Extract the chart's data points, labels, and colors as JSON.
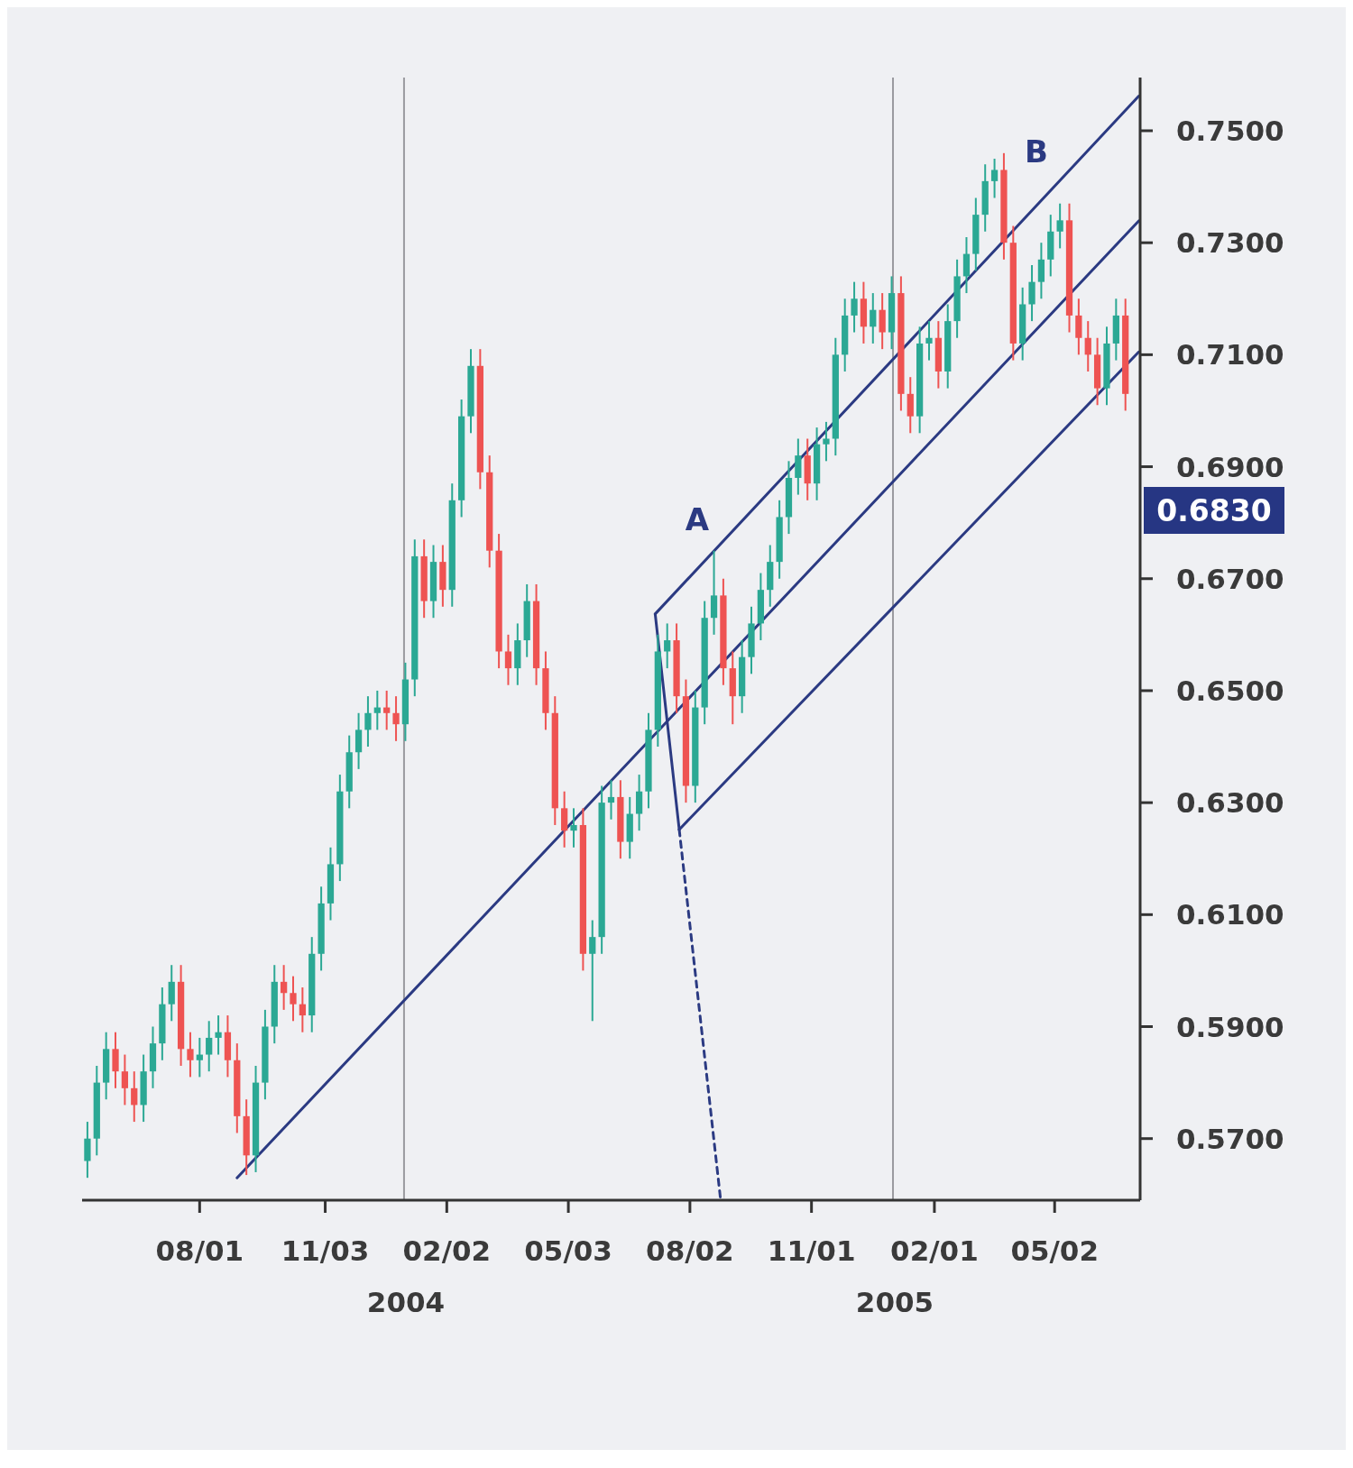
{
  "chart_data": {
    "type": "candlestick",
    "x": [
      "2003-05-09",
      "2003-05-16",
      "2003-05-23",
      "2003-05-30",
      "2003-06-06",
      "2003-06-13",
      "2003-06-20",
      "2003-06-27",
      "2003-07-04",
      "2003-07-11",
      "2003-07-18",
      "2003-07-25",
      "2003-08-01",
      "2003-08-08",
      "2003-08-15",
      "2003-08-22",
      "2003-08-29",
      "2003-09-05",
      "2003-09-12",
      "2003-09-19",
      "2003-09-26",
      "2003-10-03",
      "2003-10-10",
      "2003-10-17",
      "2003-10-24",
      "2003-10-31",
      "2003-11-07",
      "2003-11-14",
      "2003-11-21",
      "2003-11-28",
      "2003-12-05",
      "2003-12-12",
      "2003-12-19",
      "2003-12-26",
      "2004-01-02",
      "2004-01-09",
      "2004-01-16",
      "2004-01-23",
      "2004-01-30",
      "2004-02-06",
      "2004-02-13",
      "2004-02-20",
      "2004-02-27",
      "2004-03-05",
      "2004-03-12",
      "2004-03-19",
      "2004-03-26",
      "2004-04-02",
      "2004-04-09",
      "2004-04-16",
      "2004-04-23",
      "2004-04-30",
      "2004-05-07",
      "2004-05-14",
      "2004-05-21",
      "2004-05-28",
      "2004-06-04",
      "2004-06-11",
      "2004-06-18",
      "2004-06-25",
      "2004-07-02",
      "2004-07-09",
      "2004-07-16",
      "2004-07-23",
      "2004-07-30",
      "2004-08-06",
      "2004-08-13",
      "2004-08-20",
      "2004-08-27",
      "2004-09-03",
      "2004-09-10",
      "2004-09-17",
      "2004-09-24",
      "2004-10-01",
      "2004-10-08",
      "2004-10-15",
      "2004-10-22",
      "2004-10-29",
      "2004-11-05",
      "2004-11-12",
      "2004-11-19",
      "2004-11-26",
      "2004-12-03",
      "2004-12-10",
      "2004-12-17",
      "2004-12-24",
      "2004-12-31",
      "2005-01-07",
      "2005-01-14",
      "2005-01-21",
      "2005-01-28",
      "2005-02-04",
      "2005-02-11",
      "2005-02-18",
      "2005-02-25",
      "2005-03-04",
      "2005-03-11",
      "2005-03-18",
      "2005-03-25",
      "2005-04-01",
      "2005-04-08",
      "2005-04-15",
      "2005-04-22",
      "2005-04-29",
      "2005-05-06",
      "2005-05-13",
      "2005-05-20",
      "2005-05-27",
      "2005-06-03",
      "2005-06-10",
      "2005-06-17",
      "2005-06-24"
    ],
    "ohlc": [
      [
        0.566,
        0.573,
        0.563,
        0.57
      ],
      [
        0.57,
        0.583,
        0.567,
        0.58
      ],
      [
        0.58,
        0.589,
        0.577,
        0.586
      ],
      [
        0.586,
        0.589,
        0.579,
        0.582
      ],
      [
        0.582,
        0.585,
        0.576,
        0.579
      ],
      [
        0.579,
        0.582,
        0.573,
        0.576
      ],
      [
        0.576,
        0.585,
        0.573,
        0.582
      ],
      [
        0.582,
        0.59,
        0.579,
        0.587
      ],
      [
        0.587,
        0.597,
        0.584,
        0.594
      ],
      [
        0.594,
        0.601,
        0.591,
        0.598
      ],
      [
        0.598,
        0.601,
        0.583,
        0.586
      ],
      [
        0.586,
        0.589,
        0.581,
        0.584
      ],
      [
        0.584,
        0.588,
        0.581,
        0.585
      ],
      [
        0.585,
        0.591,
        0.582,
        0.588
      ],
      [
        0.588,
        0.592,
        0.585,
        0.589
      ],
      [
        0.589,
        0.592,
        0.581,
        0.584
      ],
      [
        0.584,
        0.587,
        0.571,
        0.574
      ],
      [
        0.574,
        0.577,
        0.5635,
        0.567
      ],
      [
        0.567,
        0.583,
        0.564,
        0.58
      ],
      [
        0.58,
        0.593,
        0.577,
        0.59
      ],
      [
        0.59,
        0.601,
        0.587,
        0.598
      ],
      [
        0.598,
        0.601,
        0.593,
        0.596
      ],
      [
        0.596,
        0.599,
        0.591,
        0.594
      ],
      [
        0.594,
        0.597,
        0.589,
        0.592
      ],
      [
        0.592,
        0.606,
        0.589,
        0.603
      ],
      [
        0.603,
        0.615,
        0.6,
        0.612
      ],
      [
        0.612,
        0.622,
        0.609,
        0.619
      ],
      [
        0.619,
        0.635,
        0.616,
        0.632
      ],
      [
        0.632,
        0.642,
        0.629,
        0.639
      ],
      [
        0.639,
        0.646,
        0.636,
        0.643
      ],
      [
        0.643,
        0.649,
        0.64,
        0.646
      ],
      [
        0.646,
        0.65,
        0.643,
        0.647
      ],
      [
        0.647,
        0.65,
        0.643,
        0.646
      ],
      [
        0.646,
        0.649,
        0.641,
        0.644
      ],
      [
        0.644,
        0.655,
        0.641,
        0.652
      ],
      [
        0.652,
        0.677,
        0.649,
        0.674
      ],
      [
        0.674,
        0.677,
        0.663,
        0.666
      ],
      [
        0.666,
        0.676,
        0.663,
        0.673
      ],
      [
        0.673,
        0.676,
        0.665,
        0.668
      ],
      [
        0.668,
        0.687,
        0.665,
        0.684
      ],
      [
        0.684,
        0.702,
        0.681,
        0.699
      ],
      [
        0.699,
        0.711,
        0.696,
        0.708
      ],
      [
        0.708,
        0.711,
        0.686,
        0.689
      ],
      [
        0.689,
        0.692,
        0.672,
        0.675
      ],
      [
        0.675,
        0.678,
        0.654,
        0.657
      ],
      [
        0.657,
        0.66,
        0.651,
        0.654
      ],
      [
        0.654,
        0.662,
        0.651,
        0.659
      ],
      [
        0.659,
        0.669,
        0.656,
        0.666
      ],
      [
        0.666,
        0.669,
        0.651,
        0.654
      ],
      [
        0.654,
        0.657,
        0.643,
        0.646
      ],
      [
        0.646,
        0.649,
        0.626,
        0.629
      ],
      [
        0.629,
        0.632,
        0.622,
        0.625
      ],
      [
        0.625,
        0.629,
        0.622,
        0.626
      ],
      [
        0.626,
        0.629,
        0.6,
        0.603
      ],
      [
        0.603,
        0.609,
        0.591,
        0.606
      ],
      [
        0.606,
        0.633,
        0.603,
        0.63
      ],
      [
        0.63,
        0.634,
        0.627,
        0.631
      ],
      [
        0.631,
        0.634,
        0.62,
        0.623
      ],
      [
        0.623,
        0.631,
        0.62,
        0.628
      ],
      [
        0.628,
        0.635,
        0.625,
        0.632
      ],
      [
        0.632,
        0.646,
        0.629,
        0.643
      ],
      [
        0.643,
        0.66,
        0.64,
        0.657
      ],
      [
        0.657,
        0.662,
        0.654,
        0.659
      ],
      [
        0.659,
        0.662,
        0.646,
        0.649
      ],
      [
        0.649,
        0.652,
        0.63,
        0.633
      ],
      [
        0.633,
        0.65,
        0.63,
        0.647
      ],
      [
        0.647,
        0.666,
        0.644,
        0.663
      ],
      [
        0.663,
        0.675,
        0.66,
        0.667
      ],
      [
        0.667,
        0.67,
        0.651,
        0.654
      ],
      [
        0.654,
        0.657,
        0.644,
        0.649
      ],
      [
        0.649,
        0.659,
        0.646,
        0.656
      ],
      [
        0.656,
        0.665,
        0.653,
        0.662
      ],
      [
        0.662,
        0.671,
        0.659,
        0.668
      ],
      [
        0.668,
        0.676,
        0.665,
        0.673
      ],
      [
        0.673,
        0.684,
        0.67,
        0.681
      ],
      [
        0.681,
        0.691,
        0.678,
        0.688
      ],
      [
        0.688,
        0.695,
        0.685,
        0.692
      ],
      [
        0.692,
        0.695,
        0.684,
        0.687
      ],
      [
        0.687,
        0.697,
        0.684,
        0.694
      ],
      [
        0.694,
        0.698,
        0.691,
        0.695
      ],
      [
        0.695,
        0.713,
        0.692,
        0.71
      ],
      [
        0.71,
        0.72,
        0.707,
        0.717
      ],
      [
        0.717,
        0.723,
        0.714,
        0.72
      ],
      [
        0.72,
        0.723,
        0.712,
        0.715
      ],
      [
        0.715,
        0.721,
        0.712,
        0.718
      ],
      [
        0.718,
        0.721,
        0.711,
        0.714
      ],
      [
        0.714,
        0.724,
        0.711,
        0.721
      ],
      [
        0.721,
        0.724,
        0.7,
        0.703
      ],
      [
        0.703,
        0.706,
        0.696,
        0.699
      ],
      [
        0.699,
        0.715,
        0.696,
        0.712
      ],
      [
        0.712,
        0.716,
        0.709,
        0.713
      ],
      [
        0.713,
        0.716,
        0.704,
        0.707
      ],
      [
        0.707,
        0.719,
        0.704,
        0.716
      ],
      [
        0.716,
        0.727,
        0.713,
        0.724
      ],
      [
        0.724,
        0.731,
        0.721,
        0.728
      ],
      [
        0.728,
        0.738,
        0.725,
        0.735
      ],
      [
        0.735,
        0.744,
        0.732,
        0.741
      ],
      [
        0.741,
        0.745,
        0.738,
        0.743
      ],
      [
        0.743,
        0.746,
        0.727,
        0.73
      ],
      [
        0.73,
        0.733,
        0.709,
        0.712
      ],
      [
        0.712,
        0.722,
        0.709,
        0.719
      ],
      [
        0.719,
        0.726,
        0.716,
        0.723
      ],
      [
        0.723,
        0.73,
        0.72,
        0.727
      ],
      [
        0.727,
        0.735,
        0.724,
        0.732
      ],
      [
        0.732,
        0.737,
        0.729,
        0.734
      ],
      [
        0.734,
        0.737,
        0.714,
        0.717
      ],
      [
        0.717,
        0.72,
        0.71,
        0.713
      ],
      [
        0.713,
        0.716,
        0.707,
        0.71
      ],
      [
        0.71,
        0.713,
        0.701,
        0.704
      ],
      [
        0.704,
        0.715,
        0.701,
        0.712
      ],
      [
        0.712,
        0.72,
        0.709,
        0.717
      ],
      [
        0.717,
        0.72,
        0.7,
        0.703
      ]
    ],
    "colors": [
      "#2ba894",
      "#2ba894",
      "#2ba894",
      "#ee5352",
      "#ee5352",
      "#ee5352",
      "#2ba894",
      "#2ba894",
      "#2ba894",
      "#2ba894",
      "#ee5352",
      "#ee5352",
      "#2ba894",
      "#2ba894",
      "#2ba894",
      "#ee5352",
      "#ee5352",
      "#ee5352",
      "#2ba894",
      "#2ba894",
      "#2ba894",
      "#ee5352",
      "#ee5352",
      "#ee5352",
      "#2ba894",
      "#2ba894",
      "#2ba894",
      "#2ba894",
      "#2ba894",
      "#2ba894",
      "#2ba894",
      "#2ba894",
      "#ee5352",
      "#ee5352",
      "#2ba894",
      "#2ba894",
      "#ee5352",
      "#2ba894",
      "#ee5352",
      "#2ba894",
      "#2ba894",
      "#2ba894",
      "#ee5352",
      "#ee5352",
      "#ee5352",
      "#ee5352",
      "#2ba894",
      "#2ba894",
      "#ee5352",
      "#ee5352",
      "#ee5352",
      "#ee5352",
      "#2ba894",
      "#ee5352",
      "#2ba894",
      "#2ba894",
      "#2ba894",
      "#ee5352",
      "#2ba894",
      "#2ba894",
      "#2ba894",
      "#2ba894",
      "#2ba894",
      "#ee5352",
      "#ee5352",
      "#2ba894",
      "#2ba894",
      "#2ba894",
      "#ee5352",
      "#ee5352",
      "#2ba894",
      "#2ba894",
      "#2ba894",
      "#2ba894",
      "#2ba894",
      "#2ba894",
      "#2ba894",
      "#ee5352",
      "#2ba894",
      "#2ba894",
      "#2ba894",
      "#2ba894",
      "#2ba894",
      "#ee5352",
      "#2ba894",
      "#ee5352",
      "#2ba894",
      "#ee5352",
      "#ee5352",
      "#2ba894",
      "#2ba894",
      "#ee5352",
      "#2ba894",
      "#2ba894",
      "#2ba894",
      "#2ba894",
      "#2ba894",
      "#2ba894",
      "#ee5352",
      "#ee5352",
      "#2ba894",
      "#2ba894",
      "#2ba894",
      "#2ba894",
      "#2ba894",
      "#ee5352",
      "#ee5352",
      "#ee5352",
      "#ee5352",
      "#2ba894",
      "#2ba894",
      "#ee5352"
    ],
    "series": [
      {
        "type": "line",
        "x": [
          "2003-08-29",
          "2005-07-04"
        ],
        "values": [
          0.563,
          0.7339
        ],
        "color": "#2b3a82",
        "line_style": "solid"
      },
      {
        "type": "line",
        "x": [
          "2004-07-07",
          "2005-07-04"
        ],
        "values": [
          0.6637,
          0.7562
        ],
        "color": "#2b3a82",
        "line_style": "solid"
      },
      {
        "type": "line",
        "x": [
          "2004-07-25",
          "2005-07-04"
        ],
        "values": [
          0.6252,
          0.7105
        ],
        "color": "#2b3a82",
        "line_style": "solid"
      },
      {
        "type": "line",
        "x": [
          "2004-07-07",
          "2004-07-25"
        ],
        "values": [
          0.6637,
          0.6252
        ],
        "color": "#2b3a82",
        "line_style": "solid"
      },
      {
        "type": "line",
        "x": [
          "2004-07-25",
          "2004-08-25"
        ],
        "values": [
          0.6252,
          0.559
        ],
        "color": "#2b3a82",
        "line_style": "dashed"
      }
    ],
    "xlim": [
      "2003-05-05",
      "2005-07-05"
    ],
    "xticks": [
      {
        "value": "2003-08-01",
        "label": "08/01"
      },
      {
        "value": "2003-11-03",
        "label": "11/03"
      },
      {
        "value": "2004-02-02",
        "label": "02/02"
      },
      {
        "value": "2004-05-03",
        "label": "05/03"
      },
      {
        "value": "2004-08-02",
        "label": "08/02"
      },
      {
        "value": "2004-11-01",
        "label": "11/01"
      },
      {
        "value": "2005-02-01",
        "label": "02/01"
      },
      {
        "value": "2005-05-02",
        "label": "05/02"
      }
    ],
    "ylim": [
      0.559,
      0.7595
    ],
    "yticks": [
      {
        "value": 0.57,
        "label": "0.5700"
      },
      {
        "value": 0.59,
        "label": "0.5900"
      },
      {
        "value": 0.61,
        "label": "0.6100"
      },
      {
        "value": 0.63,
        "label": "0.6300"
      },
      {
        "value": 0.65,
        "label": "0.6500"
      },
      {
        "value": 0.67,
        "label": "0.6700"
      },
      {
        "value": 0.69,
        "label": "0.6900"
      },
      {
        "value": 0.71,
        "label": "0.7100"
      },
      {
        "value": 0.73,
        "label": "0.7300"
      },
      {
        "value": 0.75,
        "label": "0.7500"
      }
    ],
    "ref_lines": [
      {
        "axis": "x",
        "value": "2004-01-01",
        "color": "#9a9a9f"
      },
      {
        "axis": "x",
        "value": "2005-01-01",
        "color": "#9a9a9f"
      }
    ],
    "annotations": [
      "A",
      "B",
      "0.6830",
      "2004",
      "2005"
    ]
  }
}
